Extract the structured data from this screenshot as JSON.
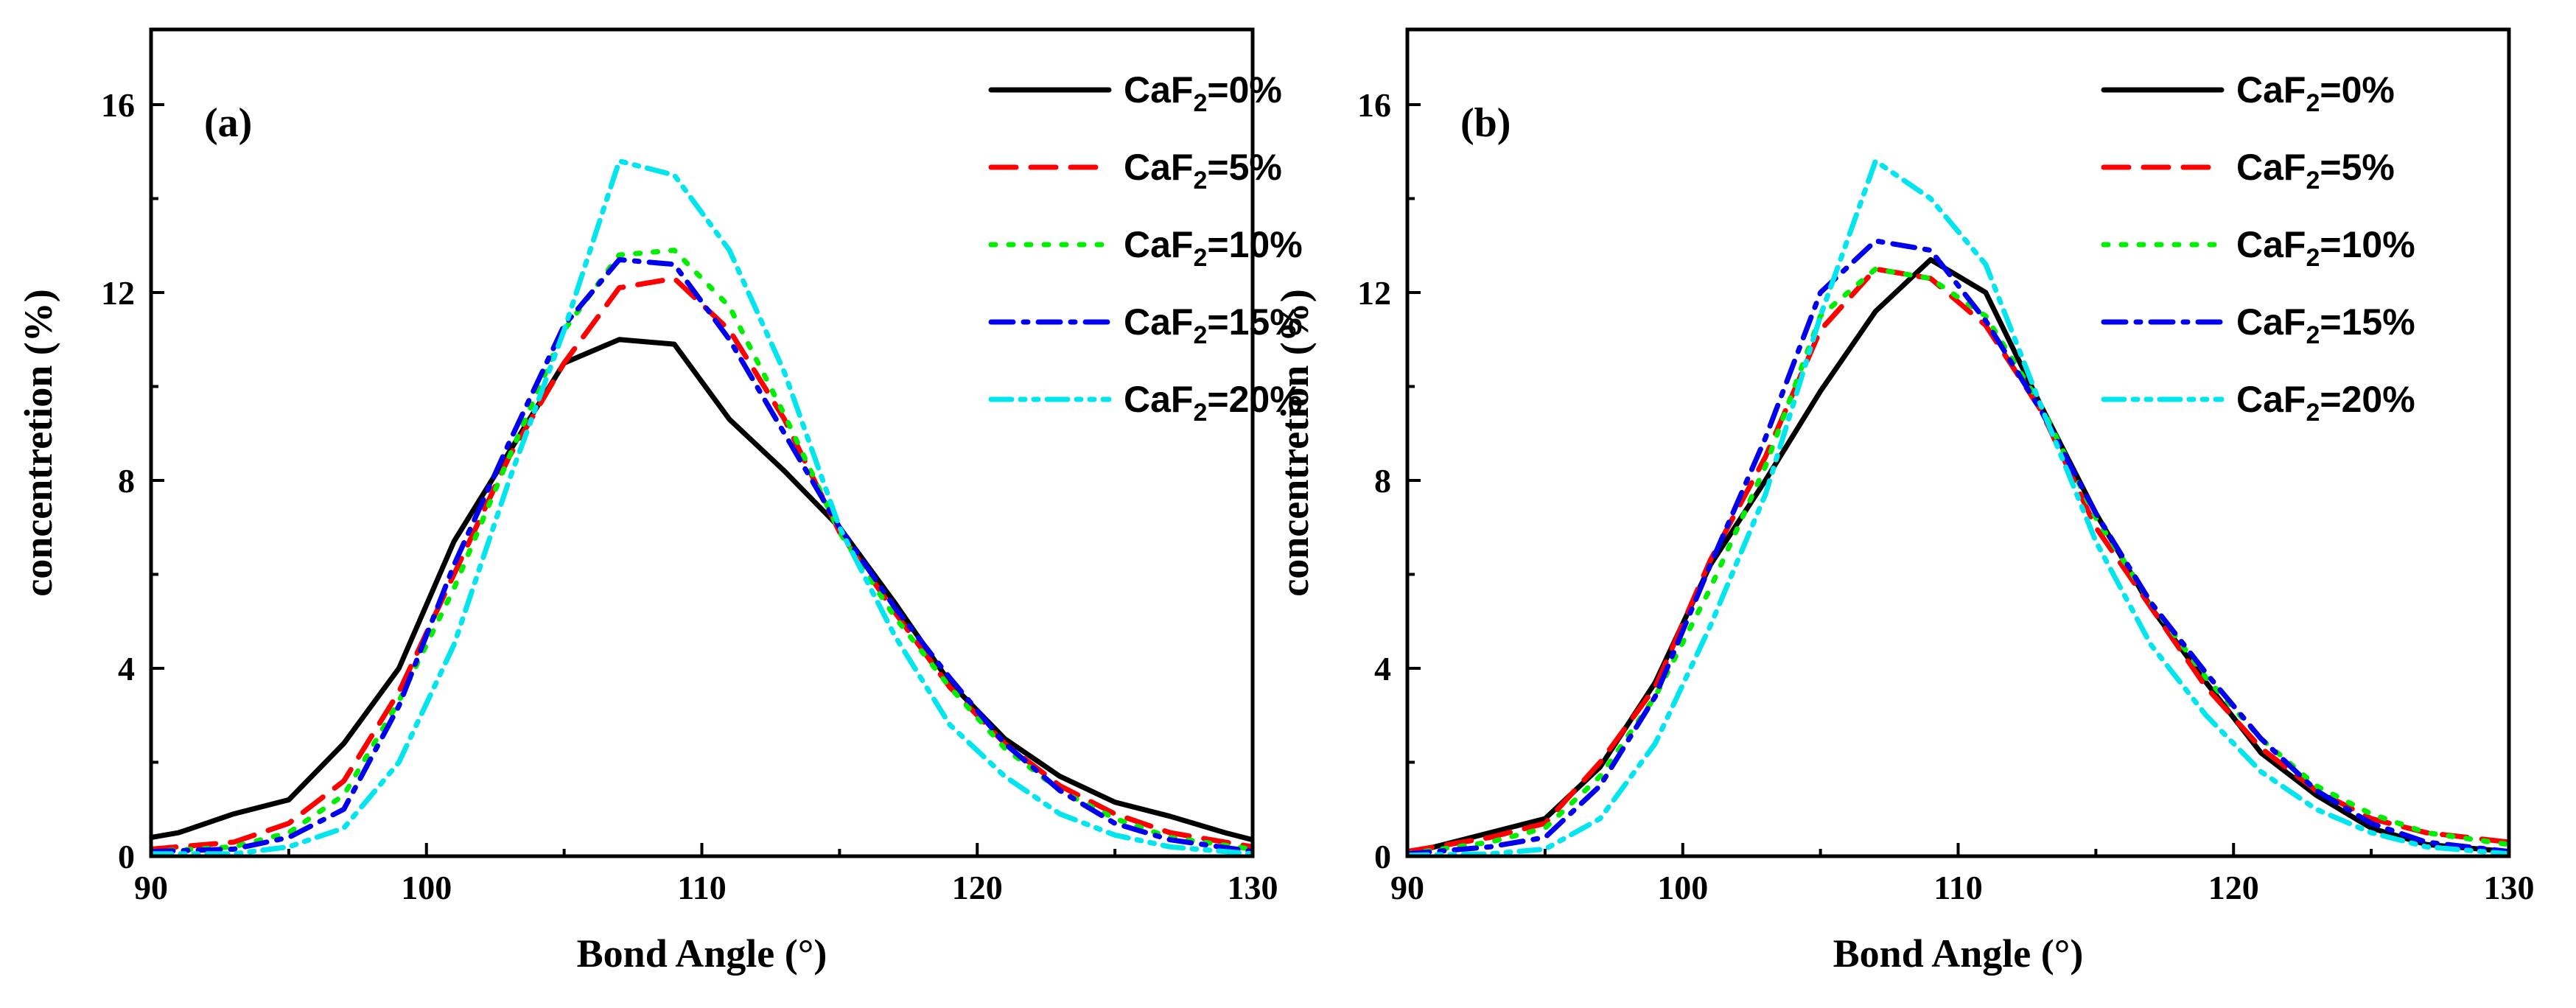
{
  "chart_data": [
    {
      "type": "line",
      "panel_label": "(a)",
      "xlabel": "Bond Angle (°)",
      "ylabel": "concentretion (%)",
      "xlim": [
        90,
        130
      ],
      "ylim": [
        0,
        17.6
      ],
      "xticks": [
        90,
        100,
        110,
        120,
        130
      ],
      "yticks": [
        0,
        4,
        8,
        12,
        16
      ],
      "legend_position": "top-right",
      "series": [
        {
          "name_base": "CaF",
          "name_sub": "2",
          "name_tail": "=0%",
          "color": "#000000",
          "dash": "solid",
          "x": [
            90,
            91,
            93,
            95,
            97,
            99,
            101,
            103,
            105,
            107,
            109,
            111,
            113,
            115,
            117,
            119,
            121,
            123,
            125,
            127,
            129,
            130
          ],
          "y": [
            0.4,
            0.5,
            0.9,
            1.2,
            2.4,
            4.0,
            6.7,
            8.6,
            10.5,
            11.0,
            10.9,
            9.3,
            8.2,
            7.0,
            5.4,
            3.7,
            2.5,
            1.7,
            1.15,
            0.85,
            0.5,
            0.35
          ]
        },
        {
          "name_base": "CaF",
          "name_sub": "2",
          "name_tail": "=5%",
          "color": "#ff0000",
          "dash": "dash",
          "x": [
            90,
            93,
            95,
            97,
            99,
            101,
            103,
            105,
            107,
            109,
            111,
            113,
            115,
            117,
            119,
            121,
            123,
            125,
            127,
            130
          ],
          "y": [
            0.15,
            0.3,
            0.7,
            1.6,
            3.5,
            6.0,
            8.5,
            10.5,
            12.1,
            12.3,
            11.2,
            9.3,
            6.9,
            5.2,
            3.6,
            2.4,
            1.5,
            0.9,
            0.5,
            0.2
          ]
        },
        {
          "name_base": "CaF",
          "name_sub": "2",
          "name_tail": "=10%",
          "color": "#00ee00",
          "dash": "dot",
          "x": [
            90,
            93,
            95,
            97,
            99,
            101,
            103,
            105,
            107,
            109,
            111,
            113,
            115,
            117,
            119,
            121,
            123,
            125,
            127,
            130
          ],
          "y": [
            0.1,
            0.2,
            0.5,
            1.3,
            3.3,
            5.7,
            8.5,
            11.2,
            12.8,
            12.9,
            11.7,
            9.4,
            6.9,
            5.1,
            3.6,
            2.3,
            1.4,
            0.8,
            0.4,
            0.15
          ]
        },
        {
          "name_base": "CaF",
          "name_sub": "2",
          "name_tail": "=15%",
          "color": "#0000ee",
          "dash": "dashdot",
          "x": [
            90,
            93,
            95,
            97,
            99,
            101,
            103,
            105,
            107,
            109,
            111,
            113,
            115,
            117,
            119,
            121,
            123,
            125,
            127,
            130
          ],
          "y": [
            0.1,
            0.15,
            0.4,
            1.0,
            3.2,
            6.2,
            8.8,
            11.3,
            12.7,
            12.6,
            11.0,
            9.0,
            7.0,
            5.3,
            3.8,
            2.4,
            1.4,
            0.7,
            0.35,
            0.1
          ]
        },
        {
          "name_base": "CaF",
          "name_sub": "2",
          "name_tail": "=20%",
          "color": "#00e5ee",
          "dash": "dashdotdot",
          "x": [
            90,
            93,
            95,
            97,
            99,
            101,
            103,
            105,
            107,
            109,
            111,
            113,
            115,
            117,
            119,
            121,
            123,
            125,
            127,
            130
          ],
          "y": [
            0.05,
            0.05,
            0.2,
            0.6,
            2.0,
            4.5,
            8.0,
            11.2,
            14.8,
            14.5,
            12.9,
            10.3,
            7.0,
            4.7,
            2.8,
            1.7,
            0.9,
            0.45,
            0.2,
            0.05
          ]
        }
      ]
    },
    {
      "type": "line",
      "panel_label": "(b)",
      "xlabel": "Bond Angle (°)",
      "ylabel": "concentretion (%)",
      "xlim": [
        90,
        130
      ],
      "ylim": [
        0,
        17.6
      ],
      "xticks": [
        90,
        100,
        110,
        120,
        130
      ],
      "yticks": [
        0,
        4,
        8,
        12,
        16
      ],
      "legend_position": "top-right",
      "series": [
        {
          "name_base": "CaF",
          "name_sub": "2",
          "name_tail": "=0%",
          "color": "#000000",
          "dash": "solid",
          "x": [
            90,
            93,
            95,
            97,
            99,
            101,
            103,
            105,
            107,
            109,
            111,
            113,
            115,
            117,
            119,
            121,
            123,
            125,
            127,
            130
          ],
          "y": [
            0.05,
            0.5,
            0.8,
            1.9,
            3.7,
            6.2,
            8.0,
            9.9,
            11.6,
            12.7,
            12.0,
            9.6,
            7.3,
            5.3,
            3.7,
            2.2,
            1.3,
            0.6,
            0.25,
            0.1
          ]
        },
        {
          "name_base": "CaF",
          "name_sub": "2",
          "name_tail": "=5%",
          "color": "#ff0000",
          "dash": "dash",
          "x": [
            90,
            93,
            95,
            97,
            99,
            101,
            103,
            105,
            107,
            109,
            111,
            113,
            115,
            117,
            119,
            121,
            123,
            125,
            127,
            130
          ],
          "y": [
            0.1,
            0.4,
            0.7,
            2.0,
            3.6,
            6.3,
            8.5,
            11.2,
            12.5,
            12.3,
            11.3,
            9.5,
            7.0,
            5.3,
            3.6,
            2.3,
            1.4,
            0.8,
            0.5,
            0.3
          ]
        },
        {
          "name_base": "CaF",
          "name_sub": "2",
          "name_tail": "=10%",
          "color": "#00ee00",
          "dash": "dot",
          "x": [
            90,
            93,
            95,
            97,
            99,
            101,
            103,
            105,
            107,
            109,
            111,
            113,
            115,
            117,
            119,
            121,
            123,
            125,
            127,
            130
          ],
          "y": [
            0.05,
            0.3,
            0.6,
            1.7,
            3.4,
            5.7,
            8.3,
            11.5,
            12.5,
            12.3,
            11.5,
            9.6,
            7.2,
            5.4,
            3.8,
            2.5,
            1.5,
            0.9,
            0.5,
            0.25
          ]
        },
        {
          "name_base": "CaF",
          "name_sub": "2",
          "name_tail": "=15%",
          "color": "#0000ee",
          "dash": "dashdot",
          "x": [
            90,
            93,
            95,
            97,
            99,
            101,
            103,
            105,
            107,
            109,
            111,
            113,
            115,
            117,
            119,
            121,
            123,
            125,
            127,
            130
          ],
          "y": [
            0.05,
            0.2,
            0.4,
            1.5,
            3.4,
            6.2,
            8.9,
            12.0,
            13.1,
            12.9,
            11.4,
            9.5,
            7.3,
            5.4,
            3.9,
            2.5,
            1.4,
            0.7,
            0.3,
            0.1
          ]
        },
        {
          "name_base": "CaF",
          "name_sub": "2",
          "name_tail": "=20%",
          "color": "#00e5ee",
          "dash": "dashdotdot",
          "x": [
            90,
            93,
            95,
            97,
            99,
            101,
            103,
            105,
            107,
            109,
            111,
            113,
            115,
            117,
            119,
            121,
            123,
            125,
            127,
            130
          ],
          "y": [
            0.02,
            0.05,
            0.15,
            0.8,
            2.4,
            4.9,
            7.7,
            11.5,
            14.8,
            14.0,
            12.6,
            9.6,
            6.7,
            4.5,
            3.0,
            1.8,
            1.0,
            0.5,
            0.2,
            0.05
          ]
        }
      ]
    }
  ]
}
